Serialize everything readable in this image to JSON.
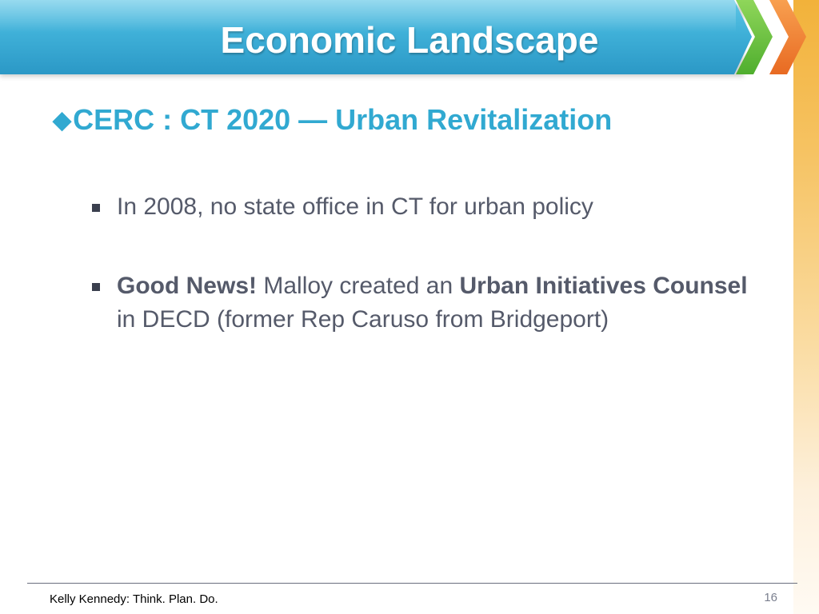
{
  "slide": {
    "title": "Economic Landscape",
    "heading": {
      "bullet_glyph": "◆",
      "text": "CERC : CT 2020 — Urban Revitalization"
    },
    "bullets": [
      {
        "text": "In 2008, no state office in CT for urban policy"
      },
      {
        "bold_lead": "Good News!",
        "text_1": " Malloy  created an ",
        "bold_mid": "Urban Initiatives Counsel",
        "text_2": " in DECD (former Rep Caruso from Bridgeport)"
      }
    ],
    "footer": {
      "text": "Kelly Kennedy: Think. Plan. Do.",
      "page_number": "16"
    }
  },
  "colors": {
    "title_bar": "#3fb0d8",
    "heading": "#31a9d1",
    "body_text": "#555a6a",
    "chevron_green": "#4fae2e",
    "chevron_orange": "#e86a22",
    "side_strip": "#f2b23a"
  }
}
